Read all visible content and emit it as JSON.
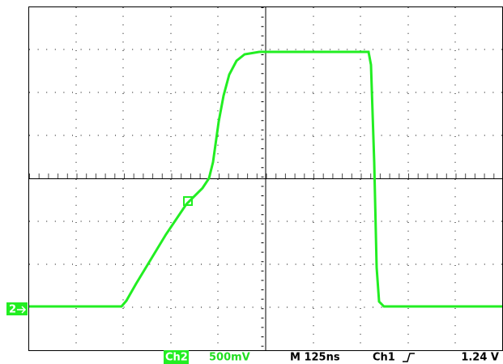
{
  "status": {
    "channel": "Ch2",
    "scale": "500mV",
    "timebase": "M 125ns",
    "trigger_source": "Ch1",
    "trigger_level": "1.24 V"
  },
  "markers": {
    "channel": "2"
  }
}
